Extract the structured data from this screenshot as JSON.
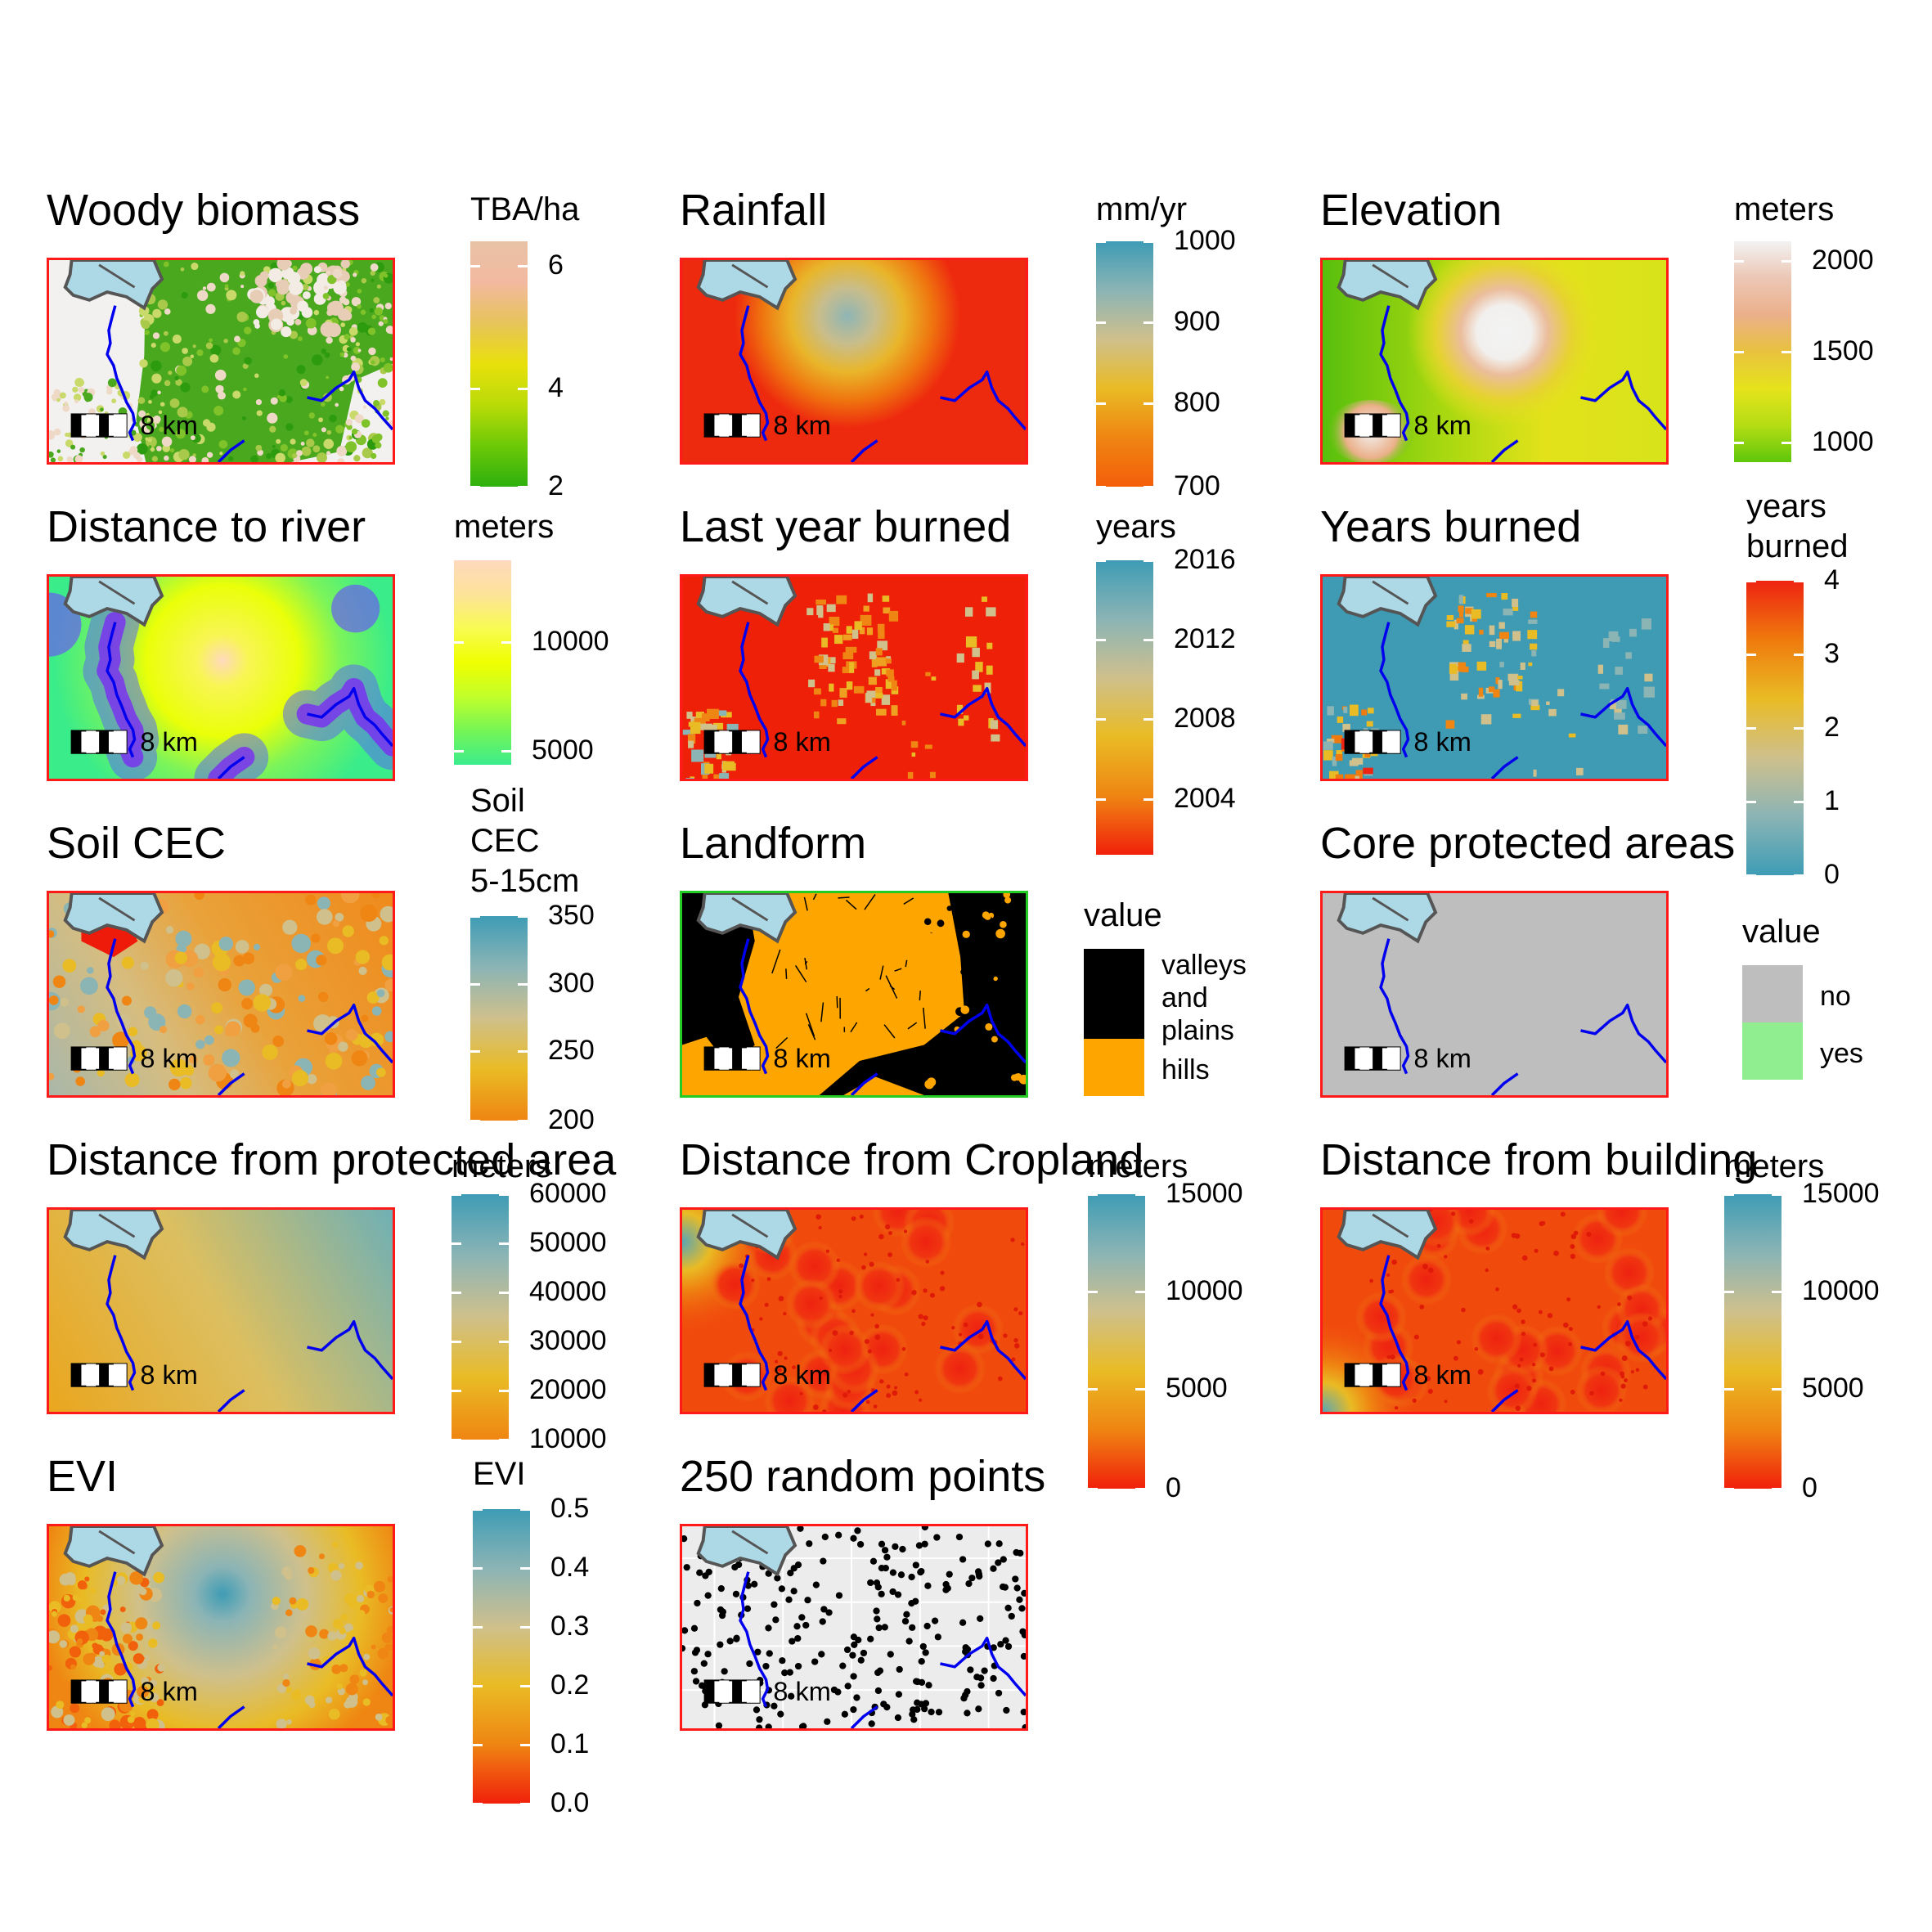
{
  "panels": [
    {
      "title": "Woody biomass",
      "legend": {
        "title": [
          "TBA/ha"
        ],
        "kind": "continuous",
        "colors": [
          "#e8c3a6",
          "#f2b9a0",
          "#e7c35a",
          "#e8e00b",
          "#b9db08",
          "#6dc907",
          "#2db00d"
        ],
        "ticks": [
          {
            "label": "6",
            "pos": 0.1
          },
          {
            "label": "4",
            "pos": 0.6
          },
          {
            "label": "2",
            "pos": 1.0
          }
        ]
      },
      "map": {
        "style": "woody"
      }
    },
    {
      "title": "Rainfall",
      "legend": {
        "title": [
          "mm/yr"
        ],
        "kind": "continuous",
        "colors": [
          "#3e9cb5",
          "#8bb4b5",
          "#cfc08c",
          "#e9bb24",
          "#ef8512",
          "#f45e0a"
        ],
        "ticks": [
          {
            "label": "1000",
            "pos": 0.0
          },
          {
            "label": "900",
            "pos": 0.33
          },
          {
            "label": "800",
            "pos": 0.66
          },
          {
            "label": "700",
            "pos": 1.0
          }
        ]
      },
      "map": {
        "style": "rainfall"
      }
    },
    {
      "title": "Elevation",
      "legend": {
        "title": [
          "meters"
        ],
        "kind": "continuous",
        "colors": [
          "#f2f2f2",
          "#ecc7b5",
          "#ebb08a",
          "#e8c23e",
          "#e6e31c",
          "#b5dd14",
          "#5ec60a"
        ],
        "ticks": [
          {
            "label": "2000",
            "pos": 0.09
          },
          {
            "label": "1500",
            "pos": 0.5
          },
          {
            "label": "1000",
            "pos": 0.91
          }
        ]
      },
      "map": {
        "style": "elevation"
      }
    },
    {
      "title": "Distance to river",
      "legend": {
        "title": [
          "meters"
        ],
        "kind": "continuous",
        "colors": [
          "#ffd9bd",
          "#fde39a",
          "#f8fb52",
          "#f0ff00",
          "#c2ff2a",
          "#74f555",
          "#3cec8d"
        ],
        "ticks": [
          {
            "label": "10000",
            "pos": 0.4
          },
          {
            "label": "5000",
            "pos": 0.93
          }
        ]
      },
      "map": {
        "style": "distriver"
      }
    },
    {
      "title": "Last year burned",
      "legend": {
        "title": [
          "years"
        ],
        "kind": "continuous",
        "colors": [
          "#3e9cb5",
          "#8bb4b5",
          "#cfc08c",
          "#e9bb24",
          "#ef8512",
          "#f1200b"
        ],
        "ticks": [
          {
            "label": "2016",
            "pos": 0.0
          },
          {
            "label": "2012",
            "pos": 0.27
          },
          {
            "label": "2008",
            "pos": 0.54
          },
          {
            "label": "2004",
            "pos": 0.81
          }
        ]
      },
      "map": {
        "style": "lastburn"
      }
    },
    {
      "title": "Years burned",
      "legend": {
        "title": [
          "years",
          "burned"
        ],
        "kind": "continuous",
        "colors": [
          "#ee2311",
          "#ef7a0d",
          "#e9bb24",
          "#cfc08c",
          "#8bb4b5",
          "#3e9cb5"
        ],
        "ticks": [
          {
            "label": "4",
            "pos": 0.0
          },
          {
            "label": "3",
            "pos": 0.25
          },
          {
            "label": "2",
            "pos": 0.5
          },
          {
            "label": "1",
            "pos": 0.75
          },
          {
            "label": "0",
            "pos": 1.0
          }
        ]
      },
      "map": {
        "style": "yearsburned"
      }
    },
    {
      "title": "Soil CEC",
      "legend": {
        "title": [
          "Soil",
          "CEC",
          "5-15cm"
        ],
        "kind": "continuous",
        "colors": [
          "#3e9cb5",
          "#8bb4b5",
          "#cfc08c",
          "#e9bb24",
          "#ef8512"
        ],
        "ticks": [
          {
            "label": "350",
            "pos": 0.0
          },
          {
            "label": "300",
            "pos": 0.33
          },
          {
            "label": "250",
            "pos": 0.66
          },
          {
            "label": "200",
            "pos": 1.0
          }
        ]
      },
      "map": {
        "style": "soil"
      }
    },
    {
      "title": "Landform",
      "legend": {
        "title": [
          "value"
        ],
        "kind": "categorical",
        "items": [
          {
            "label": [
              "valleys",
              "and",
              "plains"
            ],
            "color": "#000000"
          },
          {
            "label": [
              "hills"
            ],
            "color": "#ffa500"
          }
        ]
      },
      "map": {
        "style": "landform"
      }
    },
    {
      "title": "Core protected areas",
      "legend": {
        "title": [
          "value"
        ],
        "kind": "categorical",
        "items": [
          {
            "label": [
              "no"
            ],
            "color": "#bebebe"
          },
          {
            "label": [
              "yes"
            ],
            "color": "#90ee90"
          }
        ]
      },
      "map": {
        "style": "core"
      }
    },
    {
      "title": "Distance from protected area",
      "legend": {
        "title": [
          "meters"
        ],
        "kind": "continuous",
        "colors": [
          "#3e9cb5",
          "#8bb4b5",
          "#cfc08c",
          "#e9bb24",
          "#ef8512"
        ],
        "ticks": [
          {
            "label": "60000",
            "pos": 0.0
          },
          {
            "label": "50000",
            "pos": 0.2
          },
          {
            "label": "40000",
            "pos": 0.4
          },
          {
            "label": "30000",
            "pos": 0.6
          },
          {
            "label": "20000",
            "pos": 0.8
          },
          {
            "label": "10000",
            "pos": 1.0
          }
        ]
      },
      "map": {
        "style": "distprot"
      }
    },
    {
      "title": "Distance from Cropland",
      "legend": {
        "title": [
          "meters"
        ],
        "kind": "continuous",
        "colors": [
          "#3e9cb5",
          "#8bb4b5",
          "#cfc08c",
          "#e9bb24",
          "#ef8512",
          "#f1200b"
        ],
        "ticks": [
          {
            "label": "15000",
            "pos": 0.0
          },
          {
            "label": "10000",
            "pos": 0.33
          },
          {
            "label": "5000",
            "pos": 0.66
          },
          {
            "label": "0",
            "pos": 1.0
          }
        ]
      },
      "map": {
        "style": "distcrop"
      }
    },
    {
      "title": "Distance from building",
      "legend": {
        "title": [
          "meters"
        ],
        "kind": "continuous",
        "colors": [
          "#3e9cb5",
          "#8bb4b5",
          "#cfc08c",
          "#e9bb24",
          "#ef8512",
          "#f1200b"
        ],
        "ticks": [
          {
            "label": "15000",
            "pos": 0.0
          },
          {
            "label": "10000",
            "pos": 0.33
          },
          {
            "label": "5000",
            "pos": 0.66
          },
          {
            "label": "0",
            "pos": 1.0
          }
        ]
      },
      "map": {
        "style": "distbuild"
      }
    },
    {
      "title": "EVI",
      "legend": {
        "title": [
          "EVI"
        ],
        "kind": "continuous",
        "colors": [
          "#3e9cb5",
          "#8bb4b5",
          "#cfc08c",
          "#e9bb24",
          "#ef8512",
          "#f1200b"
        ],
        "ticks": [
          {
            "label": "0.5",
            "pos": 0.0
          },
          {
            "label": "0.4",
            "pos": 0.2
          },
          {
            "label": "0.3",
            "pos": 0.4
          },
          {
            "label": "0.2",
            "pos": 0.6
          },
          {
            "label": "0.1",
            "pos": 0.8
          },
          {
            "label": "0.0",
            "pos": 1.0
          }
        ]
      },
      "map": {
        "style": "evi"
      }
    },
    {
      "title": "250 random points",
      "legend": null,
      "map": {
        "style": "points",
        "point_count": 250
      }
    }
  ],
  "scalebar": {
    "label": "8 km"
  },
  "colors": {
    "river": "#0000ee",
    "lake": "#add8e6",
    "frame": "#ff1a1a"
  }
}
